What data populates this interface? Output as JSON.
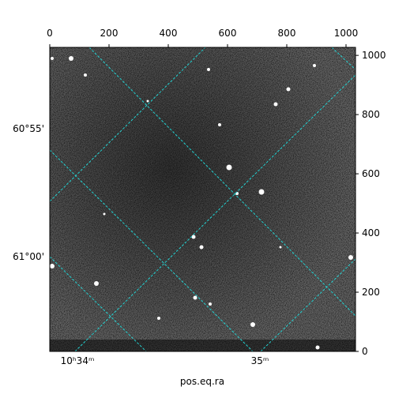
{
  "chart_data": {
    "type": "image",
    "xlabel": "pos.eq.ra",
    "xlim": [
      0,
      1032
    ],
    "xticks": [
      0,
      200,
      400,
      600,
      800,
      1000
    ],
    "ylim": [
      0,
      1027
    ],
    "yticks": [
      0,
      200,
      400,
      600,
      800,
      1000
    ],
    "ra_tick_labels": [
      "10ʰ34ᵐ",
      "35ᵐ"
    ],
    "dec_tick_labels": [
      "60°55'",
      "61°00'"
    ],
    "grid_color": "#22d3d3"
  }
}
